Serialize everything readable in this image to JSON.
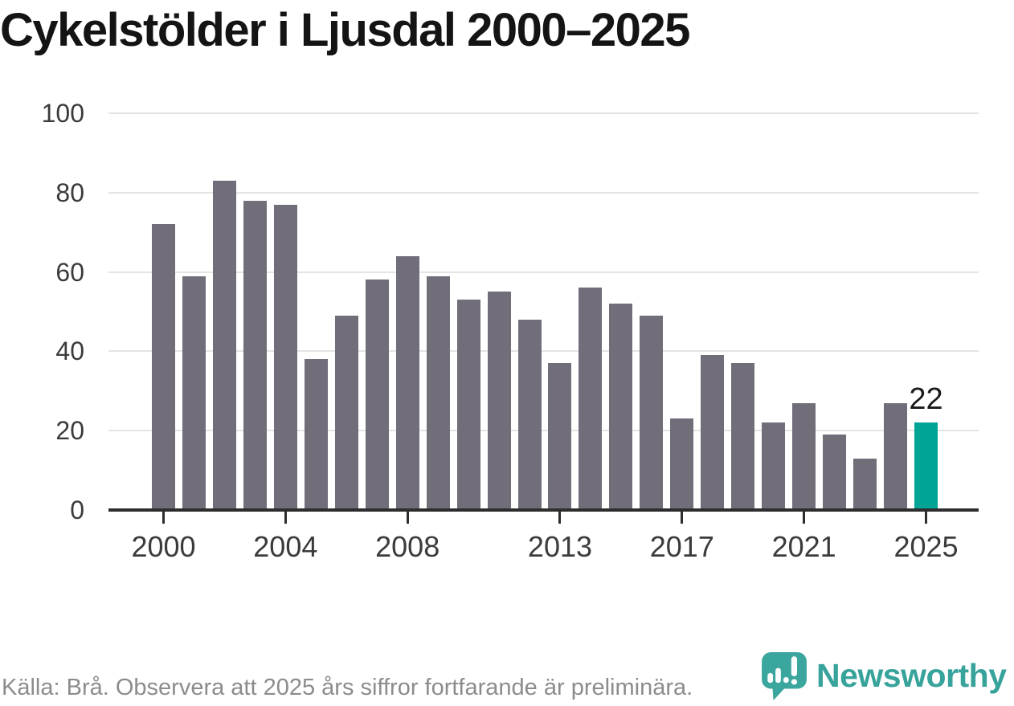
{
  "title": "Cykelstölder i Ljusdal 2000–2025",
  "chart_data": {
    "type": "bar",
    "categories": [
      2000,
      2001,
      2002,
      2003,
      2004,
      2005,
      2006,
      2007,
      2008,
      2009,
      2010,
      2011,
      2012,
      2013,
      2014,
      2015,
      2016,
      2017,
      2018,
      2019,
      2020,
      2021,
      2022,
      2023,
      2024,
      2025
    ],
    "values": [
      72,
      59,
      83,
      78,
      77,
      38,
      49,
      58,
      64,
      59,
      53,
      55,
      48,
      37,
      56,
      52,
      49,
      23,
      39,
      37,
      22,
      27,
      19,
      13,
      27,
      22
    ],
    "title": "Cykelstölder i Ljusdal 2000–2025",
    "xlabel": "",
    "ylabel": "",
    "ylim": [
      0,
      100
    ],
    "yticks": [
      0,
      20,
      40,
      60,
      80,
      100
    ],
    "xticks": [
      2000,
      2004,
      2008,
      2013,
      2017,
      2021,
      2025
    ],
    "grid": true,
    "legend": false,
    "bar_color": "#716e79",
    "highlight_color": "#00a495",
    "highlight_year": 2025,
    "highlight_label": "22"
  },
  "footer": {
    "source_note": "Källa: Brå. Observera att 2025 års siffror fortfarande är preliminära.",
    "logo_text": "Newsworthy"
  },
  "icons": {
    "logo_icon_name": "newsworthy-bubble-chart-icon"
  }
}
